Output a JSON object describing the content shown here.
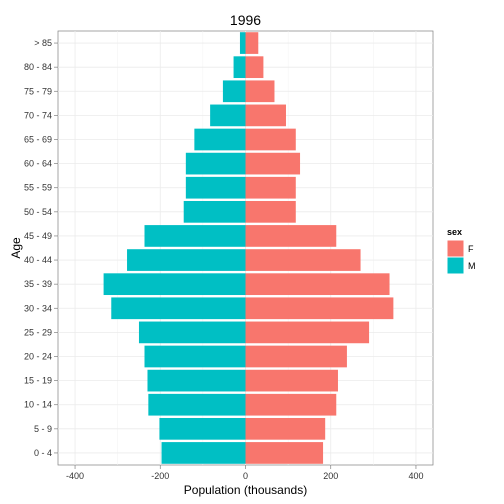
{
  "chart_data": {
    "type": "bar",
    "orientation": "horizontal",
    "title": "1996",
    "xlabel": "Population (thousands)",
    "ylabel": "Age",
    "xlim": [
      -440,
      440
    ],
    "x_ticks": [
      -400,
      -200,
      0,
      200,
      400
    ],
    "x_tick_labels": [
      "-400",
      "-200",
      "0",
      "200",
      "400"
    ],
    "categories": [
      "0 - 4",
      "5 - 9",
      "10 - 14",
      "15 - 19",
      "20 - 24",
      "25 - 29",
      "30 - 34",
      "35 - 39",
      "40 - 44",
      "45 - 49",
      "50 - 54",
      "55 - 59",
      "60 - 64",
      "65 - 69",
      "70 - 74",
      "75 - 79",
      "80 - 84",
      "> 85"
    ],
    "series": [
      {
        "name": "F",
        "color": "#F8766D",
        "values": [
          182,
          187,
          213,
          217,
          238,
          290,
          347,
          338,
          270,
          213,
          118,
          118,
          128,
          118,
          95,
          68,
          42,
          30
        ]
      },
      {
        "name": "M",
        "color": "#00BFC4",
        "values": [
          -197,
          -202,
          -228,
          -230,
          -237,
          -250,
          -315,
          -333,
          -278,
          -237,
          -145,
          -140,
          -140,
          -120,
          -83,
          -53,
          -28,
          -13
        ]
      }
    ],
    "legend": {
      "title": "sex",
      "position": "right",
      "entries": [
        "F",
        "M"
      ]
    },
    "grid": true
  }
}
